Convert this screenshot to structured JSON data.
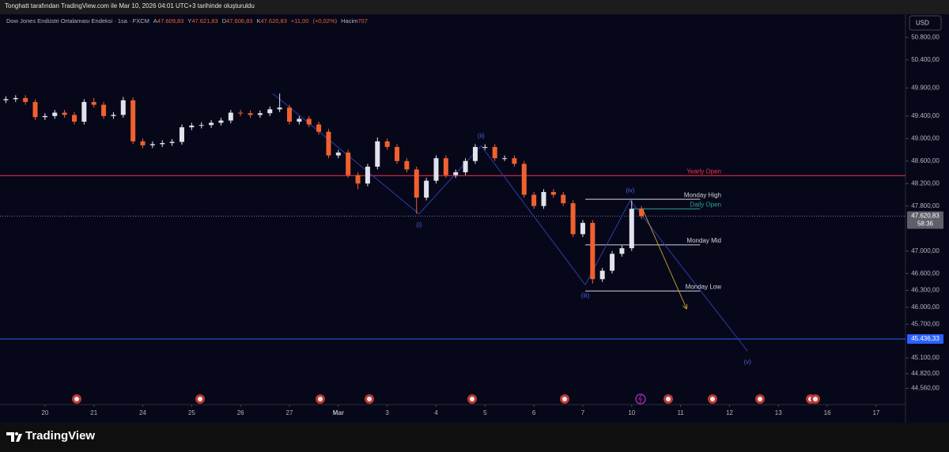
{
  "header": {
    "credit": "Tonghatt tarafından TradingView.com ile Mar 10, 2026 04:01 UTC+3 tarihinde oluşturuldu"
  },
  "footer": {
    "brand": "TradingView"
  },
  "chart_data": {
    "type": "candlestick",
    "title": "Dow Jones Endüstri Ortalaması Endeksi · 1sa · FXCM",
    "ohlc_legend": [
      {
        "key": "A",
        "value": 47609.83,
        "label": "47.609,83"
      },
      {
        "key": "Y",
        "value": 47621.83,
        "label": "47.621,83"
      },
      {
        "key": "D",
        "value": 47606.83,
        "label": "47.606,83"
      },
      {
        "key": "K",
        "value": 47620.83,
        "label": "47.620,83"
      }
    ],
    "change": {
      "value": 11,
      "label": "+11,00"
    },
    "change_pct": {
      "value": 0.02,
      "label": "(+0,02%)"
    },
    "volume_key": "Hacim",
    "volume": 707,
    "currency": "USD",
    "up_color": "#e0e3eb",
    "down_color": "#f0612e",
    "grid": false,
    "xlim": [
      -0.92,
      17.6
    ],
    "xticks": [
      {
        "value": 0,
        "label": "20"
      },
      {
        "value": 1,
        "label": "21"
      },
      {
        "value": 2,
        "label": "24"
      },
      {
        "value": 3,
        "label": "25"
      },
      {
        "value": 4,
        "label": "26"
      },
      {
        "value": 5,
        "label": "27"
      },
      {
        "value": 6,
        "label": "Mar"
      },
      {
        "value": 7,
        "label": "3"
      },
      {
        "value": 8,
        "label": "4"
      },
      {
        "value": 9,
        "label": "5"
      },
      {
        "value": 10,
        "label": "6"
      },
      {
        "value": 11,
        "label": "7"
      },
      {
        "value": 12,
        "label": "10"
      },
      {
        "value": 13,
        "label": "11"
      },
      {
        "value": 14,
        "label": "12"
      },
      {
        "value": 15,
        "label": "13"
      },
      {
        "value": 16,
        "label": "16"
      },
      {
        "value": 17,
        "label": "17"
      }
    ],
    "ylim": [
      44270,
      51210
    ],
    "yticks": [
      {
        "value": 50800,
        "label": "50.800,00"
      },
      {
        "value": 50400,
        "label": "50.400,00"
      },
      {
        "value": 49900,
        "label": "49.900,00"
      },
      {
        "value": 49400,
        "label": "49.400,00"
      },
      {
        "value": 49000,
        "label": "49.000,00"
      },
      {
        "value": 48600,
        "label": "48.600,00"
      },
      {
        "value": 48200,
        "label": "48.200,00"
      },
      {
        "value": 47800,
        "label": "47.800,00"
      },
      {
        "value": 47000,
        "label": "47.000,00"
      },
      {
        "value": 46600,
        "label": "46.600,00"
      },
      {
        "value": 46300,
        "label": "46.300,00"
      },
      {
        "value": 46000,
        "label": "46.000,00"
      },
      {
        "value": 45700,
        "label": "45.700,00"
      },
      {
        "value": 45100,
        "label": "45.100,00"
      },
      {
        "value": 44820,
        "label": "44.820,00"
      },
      {
        "value": 44560,
        "label": "44.560,00"
      }
    ],
    "candles": {
      "x": [
        -0.8,
        -0.6,
        -0.4,
        -0.2,
        0,
        0.2,
        0.4,
        0.6,
        0.8,
        1,
        1.2,
        1.4,
        1.6,
        1.8,
        2,
        2.2,
        2.4,
        2.6,
        2.8,
        3,
        3.2,
        3.4,
        3.6,
        3.8,
        4,
        4.2,
        4.4,
        4.6,
        4.8,
        5,
        5.2,
        5.4,
        5.6,
        5.8,
        6,
        6.2,
        6.4,
        6.6,
        6.8,
        7,
        7.2,
        7.4,
        7.6,
        7.8,
        8,
        8.2,
        8.4,
        8.6,
        8.8,
        9,
        9.2,
        9.4,
        9.6,
        9.8,
        10,
        10.2,
        10.4,
        10.6,
        10.8,
        11,
        11.2,
        11.4,
        11.6,
        11.8,
        12,
        12.2
      ],
      "open": [
        49680,
        49700,
        49720,
        49650,
        49380,
        49400,
        49460,
        49420,
        49300,
        49650,
        49600,
        49400,
        49420,
        49680,
        48950,
        48880,
        48900,
        48920,
        48940,
        49200,
        49230,
        49240,
        49280,
        49320,
        49460,
        49450,
        49420,
        49450,
        49520,
        49550,
        49300,
        49350,
        49250,
        49120,
        48700,
        48750,
        48350,
        48200,
        48500,
        48950,
        48850,
        48600,
        48450,
        47950,
        48250,
        48650,
        48350,
        48400,
        48600,
        48850,
        48850,
        48650,
        48650,
        48550,
        48000,
        47800,
        48050,
        48000,
        47850,
        47300,
        47500,
        46500,
        46650,
        46950,
        47050,
        47750
      ],
      "high": [
        49750,
        49770,
        49770,
        49700,
        49450,
        49510,
        49510,
        49470,
        49700,
        49720,
        49650,
        49470,
        49740,
        49730,
        49000,
        48950,
        48970,
        48990,
        49250,
        49280,
        49290,
        49330,
        49370,
        49510,
        49510,
        49500,
        49500,
        49570,
        49800,
        49600,
        49400,
        49400,
        49300,
        49170,
        48800,
        48800,
        48400,
        48550,
        49020,
        49000,
        48900,
        48650,
        48500,
        48300,
        48700,
        48700,
        48450,
        48650,
        48900,
        48900,
        48900,
        48700,
        48700,
        48600,
        48050,
        48100,
        48100,
        48050,
        47900,
        47550,
        47550,
        46700,
        47000,
        47100,
        47900,
        47800
      ],
      "low": [
        49630,
        49650,
        49600,
        49330,
        49330,
        49350,
        49370,
        49250,
        49250,
        49550,
        49350,
        49350,
        49370,
        48900,
        48830,
        48830,
        48850,
        48870,
        48890,
        49150,
        49180,
        49190,
        49230,
        49270,
        49400,
        49370,
        49370,
        49400,
        49470,
        49250,
        49250,
        49200,
        49070,
        48650,
        48650,
        48300,
        48100,
        48150,
        48450,
        48800,
        48550,
        48400,
        47660,
        47900,
        48200,
        48300,
        48300,
        48350,
        48550,
        48800,
        48600,
        48600,
        48500,
        47950,
        47750,
        47750,
        47950,
        47800,
        47250,
        47250,
        46420,
        46450,
        46600,
        46900,
        47000,
        47570
      ],
      "close": [
        49700,
        49720,
        49650,
        49380,
        49400,
        49460,
        49420,
        49300,
        49650,
        49600,
        49400,
        49420,
        49680,
        48950,
        48880,
        48900,
        48920,
        48940,
        49200,
        49230,
        49240,
        49280,
        49320,
        49460,
        49450,
        49420,
        49450,
        49520,
        49550,
        49300,
        49350,
        49250,
        49120,
        48700,
        48750,
        48350,
        48200,
        48500,
        48950,
        48850,
        48600,
        48450,
        47950,
        48250,
        48650,
        48350,
        48400,
        48600,
        48850,
        48850,
        48650,
        48650,
        48550,
        48000,
        47800,
        48050,
        48000,
        47850,
        47300,
        47500,
        46500,
        46650,
        46950,
        47050,
        47750,
        47620
      ]
    },
    "levels": [
      {
        "label": "Yearly Open",
        "value": 48340,
        "color": "#f23645",
        "from": -0.92,
        "to": 17.6
      },
      {
        "label": "Monday High",
        "value": 47920,
        "color": "#d1d4dc",
        "from": 11.05,
        "to": 13.4
      },
      {
        "label": "Daily Open",
        "value": 47750,
        "color": "#22ab94",
        "from": 12.02,
        "to": 13.4
      },
      {
        "label": "Monday Mid",
        "value": 47110,
        "color": "#d1d4dc",
        "from": 11.05,
        "to": 13.4
      },
      {
        "label": "Monday Low",
        "value": 46290,
        "color": "#d1d4dc",
        "from": 11.05,
        "to": 13.4
      }
    ],
    "price_lines": [
      {
        "value": 45436.33,
        "label": "45.436,33",
        "color": "#2962ff",
        "style": "solid"
      },
      {
        "value": 47620.83,
        "label": "47.620,83",
        "countdown": "58:36",
        "color": "#787b86",
        "style": "dotted"
      }
    ],
    "wave_start": {
      "x": 4.66,
      "value": 49800
    },
    "waves": [
      {
        "label": "(i)",
        "x": 7.65,
        "value": 47660
      },
      {
        "label": "(ii)",
        "x": 8.92,
        "value": 48870
      },
      {
        "label": "(iii)",
        "x": 11.05,
        "value": 46400
      },
      {
        "label": "(iv)",
        "x": 11.97,
        "value": 47900
      },
      {
        "label": "(v)",
        "x": 14.37,
        "value": 45220
      }
    ],
    "wave_color": "#2a3fa8",
    "projection": {
      "x": [
        12.22,
        13.12
      ],
      "values": [
        47750,
        45980
      ],
      "color": "#b8962e"
    }
  }
}
